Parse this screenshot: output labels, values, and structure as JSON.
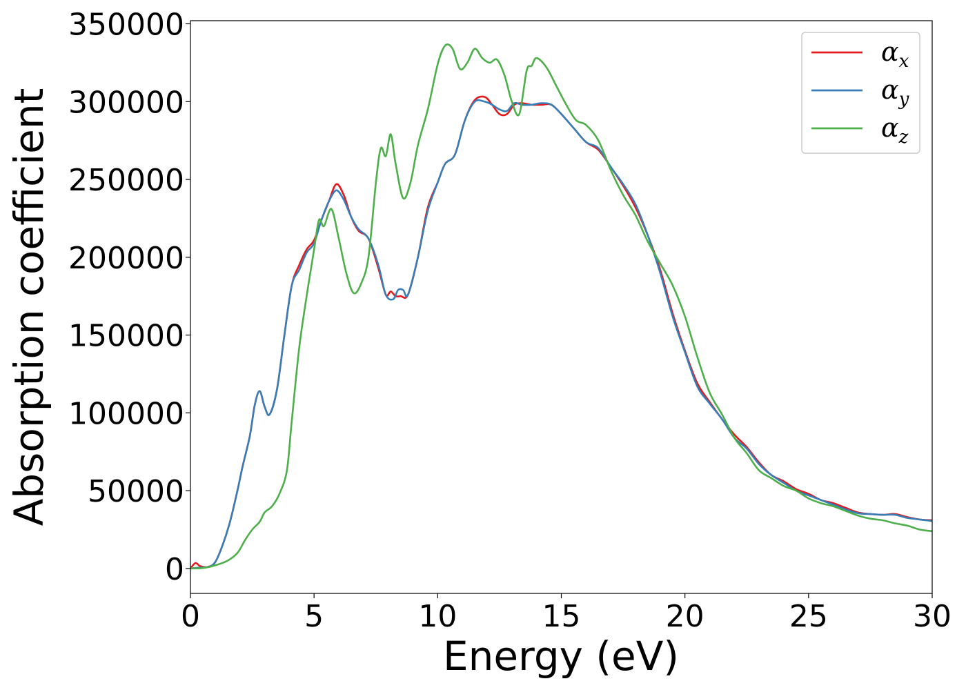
{
  "chart_data": {
    "type": "line",
    "xlabel": "Energy (eV)",
    "ylabel": "Absorption coefficient",
    "xlim": [
      0,
      30
    ],
    "ylim": [
      -16000,
      352000
    ],
    "x_ticks": [
      "0",
      "5",
      "10",
      "15",
      "20",
      "25",
      "30"
    ],
    "y_ticks": [
      "0",
      "50000",
      "100000",
      "150000",
      "200000",
      "250000",
      "300000",
      "350000"
    ],
    "grid": false,
    "legend_position": "top-right",
    "series": [
      {
        "name": "α",
        "subscript": "x",
        "color": "#e41a1c",
        "points": [
          [
            0,
            0
          ],
          [
            0.2,
            3500
          ],
          [
            0.4,
            1500
          ],
          [
            0.7,
            1000
          ],
          [
            1.0,
            4000
          ],
          [
            1.3,
            15000
          ],
          [
            1.6,
            30000
          ],
          [
            1.9,
            50000
          ],
          [
            2.1,
            65000
          ],
          [
            2.4,
            85000
          ],
          [
            2.6,
            105000
          ],
          [
            2.8,
            114000
          ],
          [
            3.0,
            104000
          ],
          [
            3.2,
            99000
          ],
          [
            3.5,
            115000
          ],
          [
            3.8,
            150000
          ],
          [
            4.1,
            182000
          ],
          [
            4.4,
            195000
          ],
          [
            4.7,
            205000
          ],
          [
            5.0,
            211000
          ],
          [
            5.3,
            224000
          ],
          [
            5.6,
            236000
          ],
          [
            5.9,
            247000
          ],
          [
            6.2,
            240000
          ],
          [
            6.5,
            226000
          ],
          [
            6.8,
            217000
          ],
          [
            7.2,
            212000
          ],
          [
            7.6,
            193000
          ],
          [
            7.9,
            176000
          ],
          [
            8.1,
            178000
          ],
          [
            8.3,
            175000
          ],
          [
            8.5,
            175000
          ],
          [
            8.8,
            176000
          ],
          [
            9.2,
            200000
          ],
          [
            9.6,
            232000
          ],
          [
            10.0,
            248000
          ],
          [
            10.3,
            260000
          ],
          [
            10.7,
            266000
          ],
          [
            11.1,
            288000
          ],
          [
            11.5,
            301000
          ],
          [
            11.9,
            303000
          ],
          [
            12.2,
            298000
          ],
          [
            12.5,
            292000
          ],
          [
            12.8,
            292000
          ],
          [
            13.1,
            298000
          ],
          [
            13.4,
            299000
          ],
          [
            13.8,
            298000
          ],
          [
            14.2,
            298000
          ],
          [
            14.6,
            298000
          ],
          [
            15.0,
            292000
          ],
          [
            15.5,
            283000
          ],
          [
            16.0,
            274000
          ],
          [
            16.5,
            269000
          ],
          [
            17.0,
            258000
          ],
          [
            17.5,
            246000
          ],
          [
            18.0,
            232000
          ],
          [
            18.5,
            214000
          ],
          [
            19.0,
            192000
          ],
          [
            19.5,
            164000
          ],
          [
            20.0,
            140000
          ],
          [
            20.5,
            119000
          ],
          [
            21.0,
            107000
          ],
          [
            21.5,
            96000
          ],
          [
            22.0,
            86000
          ],
          [
            22.5,
            78000
          ],
          [
            23.0,
            68000
          ],
          [
            23.5,
            60000
          ],
          [
            24.0,
            56000
          ],
          [
            24.5,
            51000
          ],
          [
            25.0,
            48000
          ],
          [
            25.5,
            44000
          ],
          [
            26.0,
            42000
          ],
          [
            26.5,
            39000
          ],
          [
            27.0,
            36000
          ],
          [
            27.5,
            35000
          ],
          [
            28.0,
            34500
          ],
          [
            28.5,
            35000
          ],
          [
            29.0,
            33000
          ],
          [
            29.5,
            31500
          ],
          [
            30.0,
            31000
          ]
        ]
      },
      {
        "name": "α",
        "subscript": "y",
        "color": "#377eb8",
        "points": [
          [
            0,
            0
          ],
          [
            0.3,
            500
          ],
          [
            0.7,
            1000
          ],
          [
            1.0,
            4000
          ],
          [
            1.3,
            15000
          ],
          [
            1.6,
            30000
          ],
          [
            1.9,
            50000
          ],
          [
            2.1,
            65000
          ],
          [
            2.4,
            85000
          ],
          [
            2.6,
            105000
          ],
          [
            2.8,
            114000
          ],
          [
            3.0,
            104000
          ],
          [
            3.2,
            99000
          ],
          [
            3.5,
            115000
          ],
          [
            3.8,
            150000
          ],
          [
            4.1,
            182000
          ],
          [
            4.4,
            192000
          ],
          [
            4.7,
            203000
          ],
          [
            5.0,
            209000
          ],
          [
            5.3,
            224000
          ],
          [
            5.6,
            236000
          ],
          [
            5.9,
            243000
          ],
          [
            6.2,
            237000
          ],
          [
            6.5,
            226000
          ],
          [
            6.8,
            218000
          ],
          [
            7.2,
            212000
          ],
          [
            7.6,
            195000
          ],
          [
            7.9,
            176000
          ],
          [
            8.2,
            173000
          ],
          [
            8.4,
            179000
          ],
          [
            8.6,
            179000
          ],
          [
            8.8,
            176000
          ],
          [
            9.2,
            200000
          ],
          [
            9.6,
            230000
          ],
          [
            10.0,
            248000
          ],
          [
            10.3,
            260000
          ],
          [
            10.7,
            266000
          ],
          [
            11.1,
            288000
          ],
          [
            11.5,
            300000
          ],
          [
            11.9,
            300000
          ],
          [
            12.2,
            298000
          ],
          [
            12.5,
            295000
          ],
          [
            12.8,
            294000
          ],
          [
            13.1,
            299000
          ],
          [
            13.4,
            298000
          ],
          [
            13.8,
            298000
          ],
          [
            14.2,
            299000
          ],
          [
            14.6,
            298000
          ],
          [
            15.0,
            292000
          ],
          [
            15.5,
            283000
          ],
          [
            16.0,
            274000
          ],
          [
            16.5,
            270000
          ],
          [
            17.0,
            258000
          ],
          [
            17.5,
            247000
          ],
          [
            18.0,
            234000
          ],
          [
            18.5,
            214000
          ],
          [
            19.0,
            190000
          ],
          [
            19.5,
            162000
          ],
          [
            20.0,
            139000
          ],
          [
            20.5,
            117000
          ],
          [
            21.0,
            106000
          ],
          [
            21.5,
            96000
          ],
          [
            22.0,
            84000
          ],
          [
            22.5,
            77000
          ],
          [
            23.0,
            67000
          ],
          [
            23.5,
            60000
          ],
          [
            24.0,
            55000
          ],
          [
            24.5,
            50000
          ],
          [
            25.0,
            47000
          ],
          [
            25.5,
            44000
          ],
          [
            26.0,
            41000
          ],
          [
            26.5,
            38000
          ],
          [
            27.0,
            35500
          ],
          [
            27.5,
            35000
          ],
          [
            28.0,
            34500
          ],
          [
            28.5,
            34500
          ],
          [
            29.0,
            32500
          ],
          [
            29.5,
            31500
          ],
          [
            30.0,
            30500
          ]
        ]
      },
      {
        "name": "α",
        "subscript": "z",
        "color": "#4daf4a",
        "points": [
          [
            0,
            0
          ],
          [
            0.5,
            300
          ],
          [
            1.0,
            2000
          ],
          [
            1.5,
            5000
          ],
          [
            1.9,
            10000
          ],
          [
            2.2,
            18000
          ],
          [
            2.5,
            25000
          ],
          [
            2.8,
            30000
          ],
          [
            3.0,
            36000
          ],
          [
            3.3,
            40000
          ],
          [
            3.6,
            48000
          ],
          [
            3.9,
            63000
          ],
          [
            4.1,
            95000
          ],
          [
            4.4,
            142000
          ],
          [
            4.7,
            175000
          ],
          [
            5.0,
            205000
          ],
          [
            5.2,
            224000
          ],
          [
            5.4,
            220000
          ],
          [
            5.7,
            231000
          ],
          [
            6.0,
            212000
          ],
          [
            6.3,
            190000
          ],
          [
            6.6,
            177000
          ],
          [
            6.9,
            183000
          ],
          [
            7.2,
            200000
          ],
          [
            7.5,
            248000
          ],
          [
            7.7,
            270000
          ],
          [
            7.9,
            265000
          ],
          [
            8.1,
            279000
          ],
          [
            8.3,
            260000
          ],
          [
            8.6,
            238000
          ],
          [
            8.9,
            248000
          ],
          [
            9.2,
            272000
          ],
          [
            9.6,
            295000
          ],
          [
            10.0,
            324000
          ],
          [
            10.3,
            336000
          ],
          [
            10.6,
            334000
          ],
          [
            10.9,
            321000
          ],
          [
            11.2,
            325000
          ],
          [
            11.5,
            334000
          ],
          [
            11.8,
            328000
          ],
          [
            12.1,
            325000
          ],
          [
            12.4,
            327000
          ],
          [
            12.7,
            317000
          ],
          [
            13.0,
            300000
          ],
          [
            13.3,
            292000
          ],
          [
            13.6,
            320000
          ],
          [
            13.8,
            323000
          ],
          [
            14.0,
            328000
          ],
          [
            14.4,
            322000
          ],
          [
            14.8,
            310000
          ],
          [
            15.2,
            298000
          ],
          [
            15.6,
            288000
          ],
          [
            16.0,
            285000
          ],
          [
            16.5,
            275000
          ],
          [
            17.0,
            256000
          ],
          [
            17.5,
            240000
          ],
          [
            18.0,
            227000
          ],
          [
            18.5,
            210000
          ],
          [
            19.0,
            196000
          ],
          [
            19.5,
            182000
          ],
          [
            20.0,
            162000
          ],
          [
            20.5,
            136000
          ],
          [
            21.0,
            113000
          ],
          [
            21.5,
            99000
          ],
          [
            22.0,
            84000
          ],
          [
            22.5,
            74000
          ],
          [
            23.0,
            63000
          ],
          [
            23.5,
            58000
          ],
          [
            24.0,
            53000
          ],
          [
            24.5,
            50000
          ],
          [
            25.0,
            45000
          ],
          [
            25.5,
            42000
          ],
          [
            26.0,
            40000
          ],
          [
            26.5,
            37000
          ],
          [
            27.0,
            34000
          ],
          [
            27.5,
            32000
          ],
          [
            28.0,
            31000
          ],
          [
            28.5,
            29000
          ],
          [
            29.0,
            27500
          ],
          [
            29.5,
            25000
          ],
          [
            30.0,
            24000
          ]
        ]
      }
    ]
  }
}
